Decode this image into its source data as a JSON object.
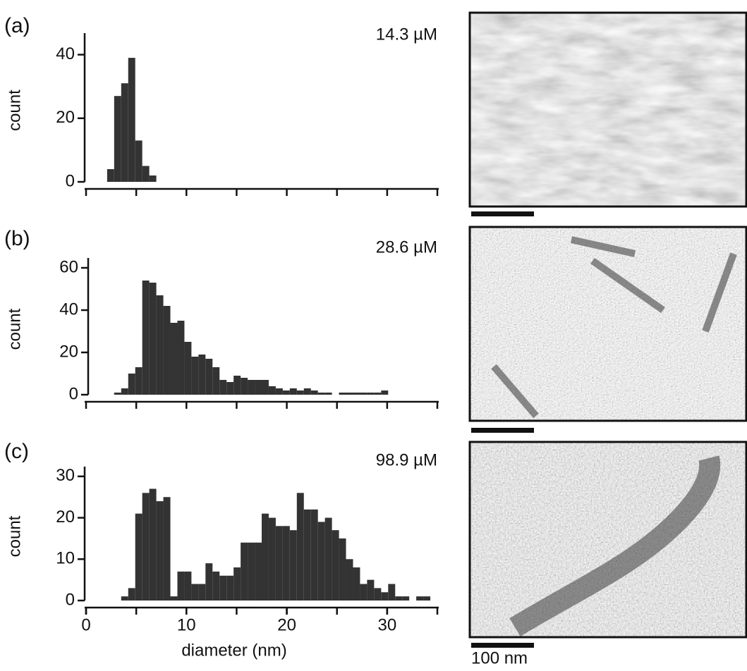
{
  "chart_data": [
    {
      "type": "histogram",
      "panel": "(a)",
      "annotation": "14.3 µM",
      "ylabel": "count",
      "color": "#333333",
      "bins": [
        0,
        0.7,
        1.4,
        2.1,
        2.8,
        3.5,
        4.2,
        4.9,
        5.6,
        6.3,
        7.0,
        7.7,
        8.4,
        9.1,
        9.8,
        10.5,
        11.2,
        11.9,
        12.6,
        13.3,
        14.0,
        14.7,
        15.4,
        16.1,
        16.8,
        17.5,
        18.2,
        18.9,
        19.6,
        20.3,
        21.0,
        21.7,
        22.4,
        23.1,
        23.8,
        24.5,
        25.2,
        25.9,
        26.6,
        27.3,
        28.0,
        28.7,
        29.4,
        30.1,
        30.8,
        31.5,
        32.2,
        32.9,
        33.6,
        34.3,
        35.0
      ],
      "values": [
        0,
        0,
        0,
        4,
        27,
        31,
        39,
        13,
        5,
        2,
        0,
        0,
        0,
        0,
        0,
        0,
        0,
        0,
        0,
        0,
        0,
        0,
        0,
        0,
        0,
        0,
        0,
        0,
        0,
        0,
        0,
        0,
        0,
        0,
        0,
        0,
        0,
        0,
        0,
        0,
        0,
        0,
        0,
        0,
        0,
        0,
        0,
        0,
        0,
        0
      ],
      "xlim": [
        0,
        35
      ],
      "xtick_marks": [
        0,
        5,
        10,
        15,
        20,
        25,
        30,
        35
      ],
      "ylim": [
        0,
        45
      ],
      "yticks": [
        0,
        20,
        40
      ]
    },
    {
      "type": "histogram",
      "panel": "(b)",
      "annotation": "28.6 µM",
      "ylabel": "count",
      "color": "#333333",
      "bins": [
        0,
        0.7,
        1.4,
        2.1,
        2.8,
        3.5,
        4.2,
        4.9,
        5.6,
        6.3,
        7.0,
        7.7,
        8.4,
        9.1,
        9.8,
        10.5,
        11.2,
        11.9,
        12.6,
        13.3,
        14.0,
        14.7,
        15.4,
        16.1,
        16.8,
        17.5,
        18.2,
        18.9,
        19.6,
        20.3,
        21.0,
        21.7,
        22.4,
        23.1,
        23.8,
        24.5,
        25.2,
        25.9,
        26.6,
        27.3,
        28.0,
        28.7,
        29.4,
        30.1,
        30.8,
        31.5,
        32.2,
        32.9,
        33.6,
        34.3,
        35.0
      ],
      "values": [
        0,
        0,
        0,
        0,
        1,
        3,
        10,
        13,
        54,
        53,
        47,
        42,
        34,
        35,
        25,
        18,
        19,
        17,
        13,
        7,
        6,
        9,
        8,
        7,
        7,
        7,
        4,
        3,
        2,
        3,
        2,
        3,
        2,
        1,
        1,
        0,
        1,
        1,
        1,
        1,
        1,
        1,
        2,
        0,
        0,
        0,
        0,
        0,
        0,
        0
      ],
      "xlim": [
        0,
        35
      ],
      "xtick_marks": [
        0,
        5,
        10,
        15,
        20,
        25,
        30,
        35
      ],
      "ylim": [
        0,
        62
      ],
      "yticks": [
        0,
        20,
        40,
        60
      ]
    },
    {
      "type": "histogram",
      "panel": "(c)",
      "annotation": "98.9 µM",
      "ylabel": "count",
      "xlabel": "diameter (nm)",
      "color": "#333333",
      "bins": [
        0,
        0.7,
        1.4,
        2.1,
        2.8,
        3.5,
        4.2,
        4.9,
        5.6,
        6.3,
        7.0,
        7.7,
        8.4,
        9.1,
        9.8,
        10.5,
        11.2,
        11.9,
        12.6,
        13.3,
        14.0,
        14.7,
        15.4,
        16.1,
        16.8,
        17.5,
        18.2,
        18.9,
        19.6,
        20.3,
        21.0,
        21.7,
        22.4,
        23.1,
        23.8,
        24.5,
        25.2,
        25.9,
        26.6,
        27.3,
        28.0,
        28.7,
        29.4,
        30.1,
        30.8,
        31.5,
        32.2,
        32.9,
        33.6,
        34.3,
        35.0
      ],
      "values": [
        0,
        0,
        0,
        0,
        0,
        1,
        3,
        21,
        26,
        27,
        24,
        25,
        1,
        7,
        7,
        4,
        4,
        9,
        7,
        6,
        6,
        8,
        14,
        14,
        14,
        21,
        20,
        18,
        18,
        17,
        26,
        22,
        22,
        19,
        20,
        17,
        15,
        10,
        8,
        4,
        5,
        3,
        2,
        4,
        1,
        1,
        0,
        1,
        1,
        0
      ],
      "xlim": [
        0,
        35
      ],
      "xtick_marks": [
        0,
        5,
        10,
        15,
        20,
        25,
        30,
        35
      ],
      "xticks": [
        0,
        10,
        20,
        30
      ],
      "ylim": [
        0,
        31
      ],
      "yticks": [
        0,
        10,
        20,
        30
      ]
    }
  ],
  "micrographs": {
    "scale_bar_label": "100 nm"
  }
}
